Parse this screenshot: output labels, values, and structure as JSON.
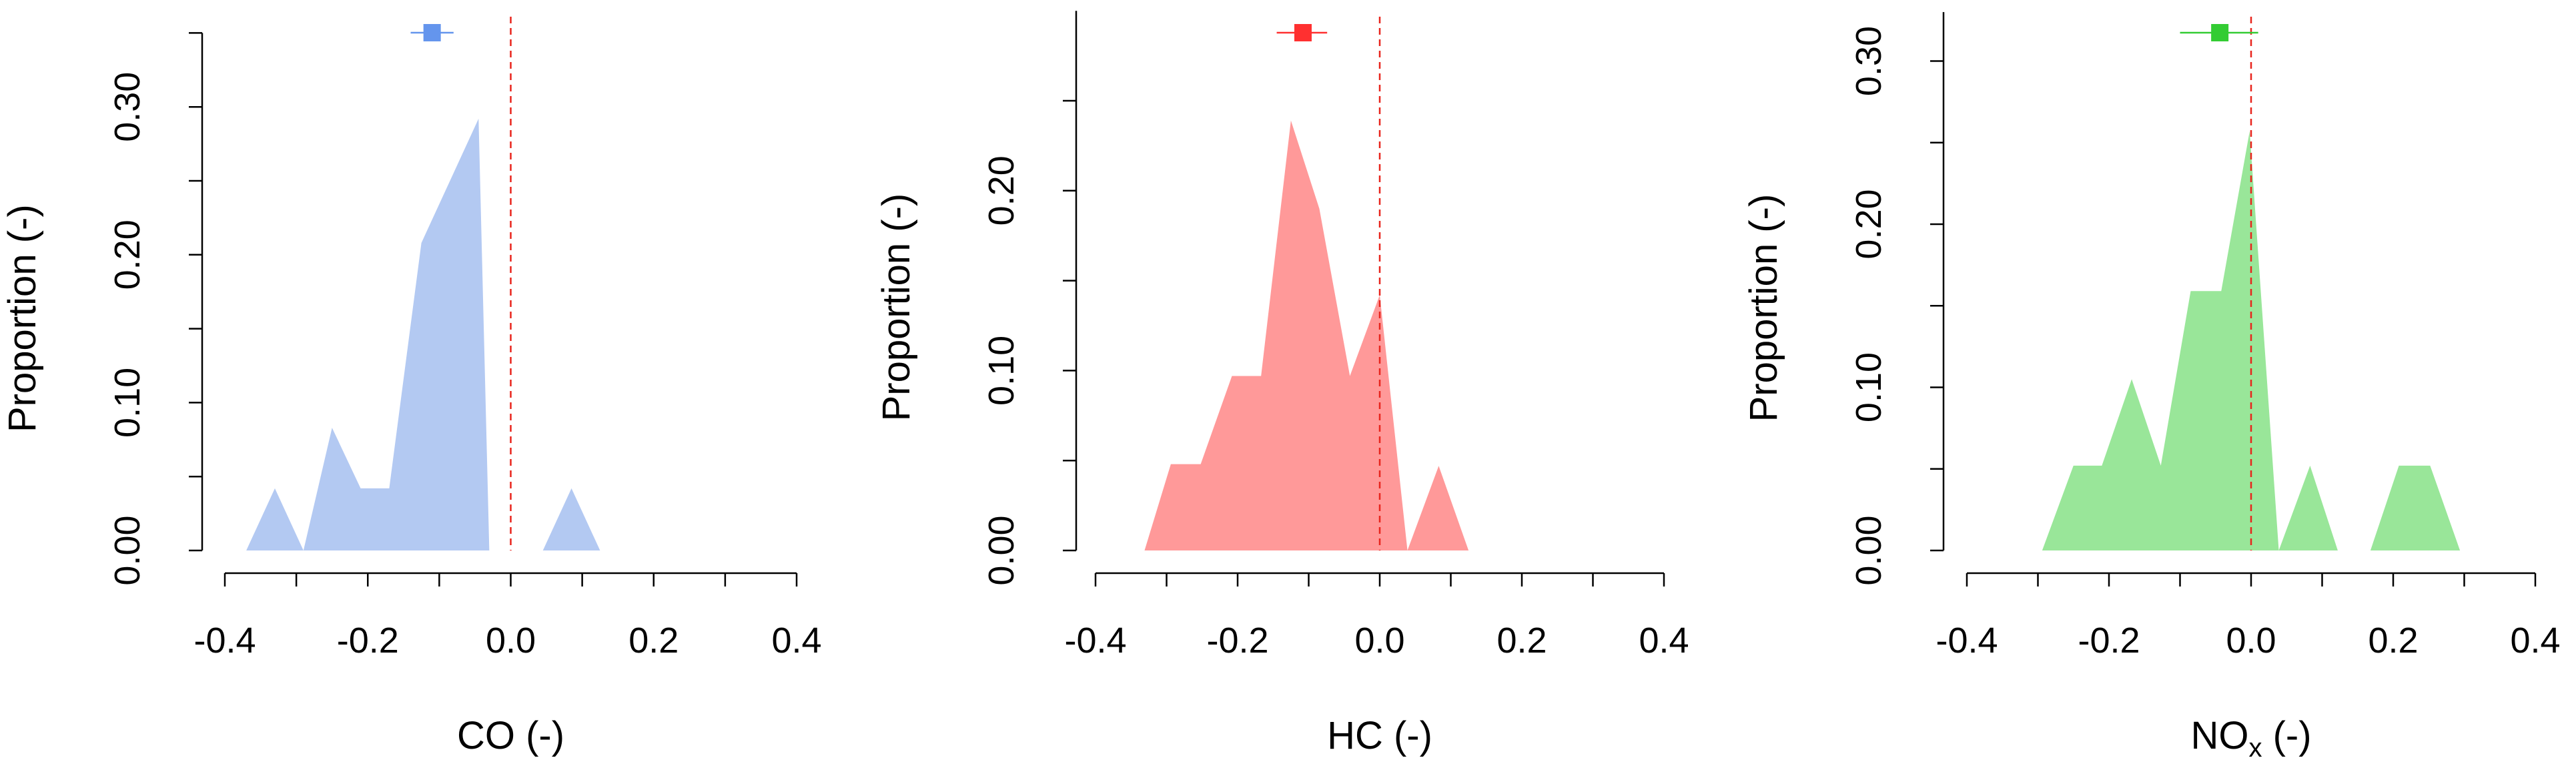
{
  "chart_data": [
    {
      "type": "area",
      "x_label": "CO (-)",
      "y_label": "Proportion (-)",
      "x": [
        -0.37,
        -0.33,
        -0.29,
        -0.25,
        -0.21,
        -0.17,
        -0.125,
        -0.045,
        -0.03,
        0.045,
        0.085,
        0.125
      ],
      "values": [
        0,
        0.042,
        0,
        0.083,
        0.042,
        0.042,
        0.208,
        0.292,
        0,
        0,
        0.042,
        0
      ],
      "color": "#b3c9f2",
      "marker_color": "#6495ed",
      "mean": -0.11,
      "interval": [
        -0.14,
        -0.08
      ],
      "ref_line": 0,
      "ref_color": "#e8241c",
      "xlim": [
        -0.4,
        0.4
      ],
      "xticks": [
        -0.4,
        -0.2,
        {
          "value": 0,
          "label": "0.0"
        },
        0.2,
        0.4
      ],
      "xminor_ticks": [
        -0.3,
        -0.1,
        0.1,
        0.3
      ],
      "ylim": [
        0,
        0.35
      ],
      "yticks": [
        {
          "value": 0,
          "label": "0.00"
        },
        {
          "value": 0.1,
          "label": "0.10"
        },
        {
          "value": 0.2,
          "label": "0.20"
        },
        {
          "value": 0.3,
          "label": "0.30"
        }
      ],
      "yminor_ticks": [
        0.05,
        0.15,
        0.25,
        0.35
      ]
    },
    {
      "type": "area",
      "x_label": "HC (-)",
      "y_label": "Proportion (-)",
      "x": [
        -0.331,
        -0.294,
        -0.252,
        -0.208,
        -0.167,
        -0.125,
        -0.085,
        -0.042,
        0,
        0.039,
        0.083,
        0.125
      ],
      "values": [
        0,
        0.048,
        0.048,
        0.097,
        0.097,
        0.239,
        0.19,
        0.097,
        0.142,
        0,
        0.047,
        0
      ],
      "color": "#ff9999",
      "marker_color": "#ff3030",
      "mean": -0.108,
      "interval": [
        -0.145,
        -0.074
      ],
      "ref_line": 0,
      "ref_color": "#e8241c",
      "xlim": [
        -0.4,
        0.4
      ],
      "xticks": [
        -0.4,
        -0.2,
        {
          "value": 0,
          "label": "0.0"
        },
        0.2,
        0.4
      ],
      "xminor_ticks": [
        -0.3,
        -0.1,
        0.1,
        0.3
      ],
      "ylim": [
        0,
        0.3
      ],
      "yticks": [
        {
          "value": 0,
          "label": "0.00"
        },
        {
          "value": 0.1,
          "label": "0.10"
        },
        {
          "value": 0.2,
          "label": "0.20"
        }
      ],
      "yminor_ticks": [
        0.05,
        0.15,
        0.25
      ]
    },
    {
      "type": "area",
      "x_label": {
        "main": "NO",
        "sub": "x",
        "after": " (-)"
      },
      "y_label": "Proportion (-)",
      "x": [
        -0.294,
        -0.25,
        -0.21,
        -0.168,
        -0.127,
        -0.085,
        -0.042,
        -0.002,
        0.039,
        0.083,
        0.122,
        0.168,
        0.208,
        0.252,
        0.294
      ],
      "values": [
        0,
        0.052,
        0.052,
        0.105,
        0.052,
        0.159,
        0.159,
        0.257,
        0,
        0.052,
        0,
        0,
        0.052,
        0.052,
        0
      ],
      "color": "#99e699",
      "marker_color": "#33cc33",
      "mean": -0.044,
      "interval": [
        -0.1,
        0.01
      ],
      "ref_line": 0,
      "ref_color": "#e8241c",
      "xlim": [
        -0.4,
        0.4
      ],
      "xticks": [
        -0.4,
        -0.2,
        {
          "value": 0,
          "label": "0.0"
        },
        0.2,
        0.4
      ],
      "xminor_ticks": [
        -0.3,
        -0.1,
        0.1,
        0.3
      ],
      "ylim": [
        0,
        0.33
      ],
      "yticks": [
        {
          "value": 0,
          "label": "0.00"
        },
        {
          "value": 0.1,
          "label": "0.10"
        },
        {
          "value": 0.2,
          "label": "0.20"
        },
        {
          "value": 0.3,
          "label": "0.30"
        }
      ],
      "yminor_ticks": [
        0.05,
        0.15,
        0.25
      ]
    }
  ]
}
